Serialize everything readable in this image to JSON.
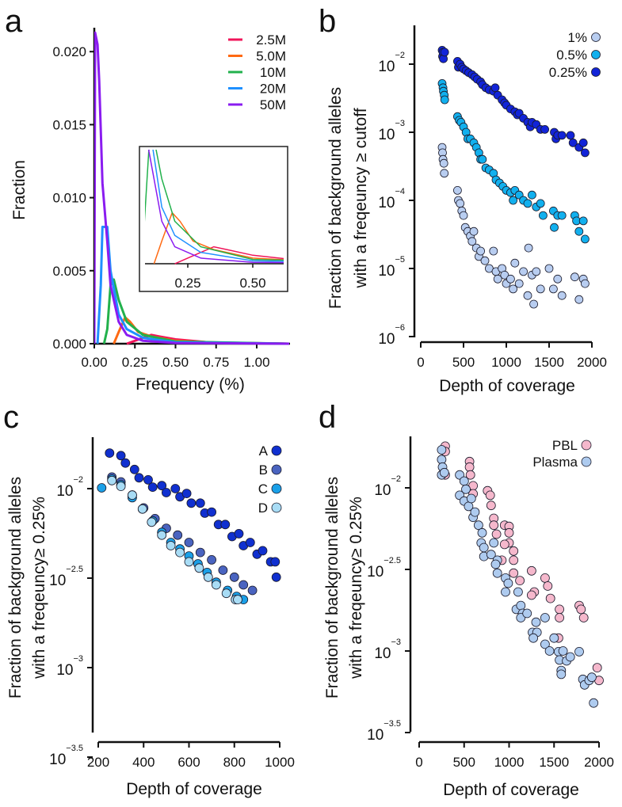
{
  "chart_data": [
    {
      "panel": "a",
      "type": "line",
      "xlabel": "Frequency (%)",
      "ylabel": "Fraction",
      "xlim": [
        0,
        1.2
      ],
      "ylim": [
        0,
        0.0215
      ],
      "xticks": [
        "0.00",
        "0.25",
        "0.50",
        "0.75",
        "1.00"
      ],
      "xtick_values": [
        0,
        0.25,
        0.5,
        0.75,
        1.0
      ],
      "yticks": [
        "0.000",
        "0.005",
        "0.010",
        "0.015",
        "0.020"
      ],
      "ytick_values": [
        0,
        0.005,
        0.01,
        0.015,
        0.02
      ],
      "legend_position": "top-right",
      "series": [
        {
          "name": "2.5M",
          "color": "#f0145a",
          "x": [
            0.2,
            0.3,
            0.35,
            0.4,
            0.5,
            0.7,
            1.0,
            1.2
          ],
          "y": [
            0,
            0.0004,
            0.0006,
            0.0005,
            0.0003,
            0.0001,
            3e-05,
            0
          ]
        },
        {
          "name": "5.0M",
          "color": "#ff6a13",
          "x": [
            0.12,
            0.15,
            0.19,
            0.22,
            0.27,
            0.35,
            0.5,
            0.8,
            1.2
          ],
          "y": [
            0,
            0.0008,
            0.0018,
            0.0015,
            0.0008,
            0.0005,
            0.0002,
            5e-05,
            0
          ]
        },
        {
          "name": "10M",
          "color": "#22b14c",
          "x": [
            0.06,
            0.08,
            0.1,
            0.12,
            0.15,
            0.2,
            0.3,
            0.5,
            1.2
          ],
          "y": [
            0,
            0.001,
            0.004,
            0.0044,
            0.003,
            0.0015,
            0.0006,
            0.00015,
            0
          ]
        },
        {
          "name": "20M",
          "color": "#1e90ff",
          "x": [
            0.02,
            0.04,
            0.05,
            0.08,
            0.1,
            0.15,
            0.2,
            0.3,
            0.5,
            1.2
          ],
          "y": [
            0,
            0.004,
            0.008,
            0.008,
            0.005,
            0.002,
            0.001,
            0.0004,
            0.0001,
            0
          ]
        },
        {
          "name": "50M",
          "color": "#8a1cf0",
          "x": [
            0,
            0.005,
            0.02,
            0.03,
            0.05,
            0.08,
            0.1,
            0.15,
            0.2,
            0.3,
            0.5,
            1.2
          ],
          "y": [
            0,
            0.0213,
            0.0205,
            0.018,
            0.011,
            0.007,
            0.004,
            0.0015,
            0.0006,
            0.0002,
            5e-05,
            0
          ]
        }
      ],
      "inset": {
        "xlim": [
          0.085,
          0.62
        ],
        "ylim": [
          0,
          0.004
        ],
        "xticks": [
          "0.25",
          "0.50"
        ],
        "xtick_values": [
          0.25,
          0.5
        ]
      }
    },
    {
      "panel": "b",
      "type": "scatter",
      "xlabel": "Depth of coverage",
      "ylabel": [
        "Fraction of background alleles",
        "with a freqeuncy ≥ cutoff"
      ],
      "xlim": [
        0,
        2000
      ],
      "ylim_log10": [
        -6,
        -1.45
      ],
      "yscale": "log",
      "xticks": [
        "0",
        "500",
        "1000",
        "1500",
        "2000"
      ],
      "xtick_values": [
        0,
        500,
        1000,
        1500,
        2000
      ],
      "yticks": [
        {
          "base": "10",
          "exp": "−2"
        },
        {
          "base": "10",
          "exp": "−3"
        },
        {
          "base": "10",
          "exp": "−4"
        },
        {
          "base": "10",
          "exp": "−5"
        },
        {
          "base": "10",
          "exp": "−6"
        }
      ],
      "ytick_values_log10": [
        -2,
        -3,
        -4,
        -5,
        -6
      ],
      "legend_position": "top-right",
      "series": [
        {
          "name": "1%",
          "color": "#b8cdf0",
          "x": [
            250,
            255,
            260,
            270,
            275,
            430,
            440,
            460,
            480,
            500,
            520,
            550,
            580,
            600,
            620,
            650,
            680,
            700,
            750,
            800,
            850,
            880,
            900,
            950,
            980,
            1000,
            1050,
            1080,
            1100,
            1150,
            1200,
            1250,
            1260,
            1300,
            1320,
            1350,
            1400,
            1500,
            1550,
            1600,
            1650,
            1800,
            1850,
            1900,
            1920
          ],
          "y": [
            0.0006,
            0.0005,
            0.0004,
            0.00035,
            0.00025,
            0.00014,
            0.0001,
            9e-05,
            7e-05,
            6e-05,
            4e-05,
            3.5e-05,
            3e-05,
            2.5e-05,
            3.5e-05,
            2e-05,
            1.5e-05,
            1.8e-05,
            1.3e-05,
            1e-05,
            1.8e-05,
            9e-06,
            7e-06,
            1e-05,
            8e-06,
            6e-06,
            7e-06,
            5e-06,
            1.2e-05,
            6e-06,
            9e-06,
            4e-06,
            2e-05,
            8e-06,
            3e-06,
            9e-06,
            5e-06,
            1e-05,
            5e-06,
            7e-06,
            4e-06,
            7.5e-06,
            3.5e-06,
            7e-06,
            6e-06
          ]
        },
        {
          "name": "0.5%",
          "color": "#12b0ee",
          "x": [
            250,
            260,
            265,
            275,
            280,
            430,
            450,
            470,
            500,
            530,
            550,
            580,
            620,
            650,
            680,
            700,
            720,
            760,
            800,
            850,
            880,
            920,
            960,
            1000,
            1050,
            1080,
            1100,
            1150,
            1200,
            1250,
            1300,
            1350,
            1400,
            1430,
            1550,
            1560,
            1600,
            1650,
            1800,
            1820,
            1850,
            1900,
            1920
          ],
          "y": [
            0.0052,
            0.0045,
            0.004,
            0.0035,
            0.003,
            0.0017,
            0.0015,
            0.0014,
            0.0012,
            0.001,
            0.0008,
            0.0008,
            0.0007,
            0.0006,
            0.0005,
            0.0004,
            0.0004,
            0.0003,
            0.00028,
            0.00025,
            0.0002,
            0.00018,
            0.00016,
            0.00014,
            0.00013,
            0.0001,
            0.00014,
            0.00012,
            0.0001,
            9e-05,
            0.00012,
            8e-05,
            9e-05,
            6e-05,
            7e-05,
            4e-05,
            6e-05,
            6e-05,
            6e-05,
            5e-05,
            3.5e-05,
            5e-05,
            2.7e-05
          ]
        },
        {
          "name": "0.25%",
          "color": "#1224d8",
          "x": [
            250,
            255,
            260,
            265,
            280,
            430,
            440,
            460,
            480,
            500,
            530,
            560,
            600,
            630,
            660,
            700,
            720,
            760,
            800,
            850,
            870,
            900,
            950,
            980,
            1000,
            1050,
            1100,
            1130,
            1150,
            1200,
            1250,
            1280,
            1300,
            1350,
            1400,
            1450,
            1560,
            1580,
            1600,
            1650,
            1750,
            1780,
            1850,
            1900,
            1920
          ],
          "y": [
            0.016,
            0.013,
            0.015,
            0.012,
            0.015,
            0.011,
            0.009,
            0.01,
            0.009,
            0.0085,
            0.008,
            0.0075,
            0.007,
            0.0065,
            0.006,
            0.0055,
            0.005,
            0.0045,
            0.0042,
            0.004,
            0.0045,
            0.0035,
            0.003,
            0.0027,
            0.0025,
            0.0022,
            0.002,
            0.0018,
            0.0019,
            0.0016,
            0.0014,
            0.0012,
            0.0014,
            0.0013,
            0.0011,
            0.0011,
            0.001,
            0.0008,
            0.0009,
            0.0009,
            0.0009,
            0.0007,
            0.0006,
            0.0007,
            0.0005
          ]
        }
      ]
    },
    {
      "panel": "c",
      "type": "scatter",
      "xlabel": "Depth of coverage",
      "ylabel": [
        "Fraction of background alleles",
        "with a freqeuncy≥ 0.25%"
      ],
      "xlim": [
        200,
        1000
      ],
      "ylim_log10": [
        -3.5,
        -1.72
      ],
      "yscale": "log",
      "xticks": [
        "200",
        "400",
        "600",
        "800",
        "1000"
      ],
      "xtick_values": [
        200,
        400,
        600,
        800,
        1000
      ],
      "yticks": [
        {
          "base": "10",
          "exp": "−2"
        },
        {
          "base": "10",
          "exp": "−2.5"
        },
        {
          "base": "10",
          "exp": "−3"
        },
        {
          "base": "10",
          "exp": "−3.5"
        }
      ],
      "ytick_values_log10": [
        -2,
        -2.5,
        -3,
        -3.5
      ],
      "legend_position": "top-right",
      "series": [
        {
          "name": "A",
          "color": "#1030d0",
          "x": [
            250,
            300,
            320,
            360,
            380,
            420,
            440,
            480,
            500,
            540,
            560,
            590,
            610,
            650,
            670,
            700,
            730,
            760,
            790,
            820,
            840,
            870,
            900,
            925,
            960,
            980,
            985
          ],
          "y": [
            0.0158,
            0.0153,
            0.0139,
            0.0128,
            0.0115,
            0.0112,
            0.0102,
            0.0104,
            0.0095,
            0.01,
            0.009,
            0.0094,
            0.0083,
            0.0083,
            0.0073,
            0.0074,
            0.0063,
            0.0063,
            0.0054,
            0.0056,
            0.0048,
            0.005,
            0.0043,
            0.0045,
            0.0039,
            0.0039,
            0.0032
          ]
        },
        {
          "name": "B",
          "color": "#4a64c0",
          "x": [
            260,
            300,
            350,
            400,
            450,
            500,
            550,
            600,
            650,
            700,
            750,
            800,
            840,
            880
          ],
          "y": [
            0.0116,
            0.0109,
            0.0092,
            0.0078,
            0.0068,
            0.006,
            0.0055,
            0.005,
            0.0044,
            0.004,
            0.0035,
            0.0032,
            0.0029,
            0.0027
          ]
        },
        {
          "name": "C",
          "color": "#1aa0e8",
          "x": [
            215,
            260,
            300,
            350,
            395,
            440,
            480,
            520,
            560,
            600,
            640,
            680,
            720,
            770,
            810,
            840
          ],
          "y": [
            0.0101,
            0.0113,
            0.0105,
            0.0089,
            0.0077,
            0.0066,
            0.0057,
            0.005,
            0.0046,
            0.0042,
            0.0038,
            0.0034,
            0.003,
            0.0027,
            0.0025,
            0.0024
          ]
        },
        {
          "name": "D",
          "color": "#a8dcf5",
          "x": [
            260,
            300,
            350,
            395,
            435,
            480,
            520,
            560,
            600,
            645,
            685,
            720,
            765,
            805,
            815
          ],
          "y": [
            0.0111,
            0.0103,
            0.0092,
            0.0077,
            0.0065,
            0.0055,
            0.0048,
            0.0044,
            0.0039,
            0.0036,
            0.0032,
            0.0029,
            0.0026,
            0.0024,
            0.0024
          ]
        }
      ]
    },
    {
      "panel": "d",
      "type": "scatter",
      "xlabel": "Depth of coverage",
      "ylabel": [
        "Fraction of background alleles",
        "with a freqeuncy≥ 0.25%"
      ],
      "xlim": [
        0,
        2000
      ],
      "ylim_log10": [
        -3.5,
        -1.68
      ],
      "yscale": "log",
      "xticks": [
        "0",
        "500",
        "1000",
        "1500",
        "2000"
      ],
      "xtick_values": [
        0,
        500,
        1000,
        1500,
        2000
      ],
      "yticks": [
        {
          "base": "10",
          "exp": "−2"
        },
        {
          "base": "10",
          "exp": "−2.5"
        },
        {
          "base": "10",
          "exp": "−3"
        },
        {
          "base": "10",
          "exp": "−3.5"
        }
      ],
      "ytick_values_log10": [
        -2,
        -2.5,
        -3,
        -3.5
      ],
      "legend_position": "top-right",
      "series": [
        {
          "name": "PBL",
          "color": "#f5b8cc",
          "x": [
            290,
            290,
            290,
            560,
            560,
            570,
            600,
            600,
            760,
            790,
            800,
            830,
            830,
            860,
            950,
            1000,
            1000,
            1000,
            950,
            1050,
            1050,
            1050,
            920,
            1120,
            1250,
            1280,
            1250,
            1400,
            1430,
            1460,
            1560,
            1560,
            1550,
            1780,
            1800,
            1830,
            1980,
            2000
          ],
          "y": [
            0.018,
            0.0167,
            0.012,
            0.0145,
            0.0134,
            0.012,
            0.0103,
            0.0092,
            0.0096,
            0.009,
            0.0078,
            0.0065,
            0.0059,
            0.0052,
            0.0059,
            0.0058,
            0.0053,
            0.0046,
            0.0045,
            0.0041,
            0.0036,
            0.003,
            0.0036,
            0.0027,
            0.0031,
            0.0023,
            0.0022,
            0.0028,
            0.0025,
            0.0021,
            0.0018,
            0.0016,
            0.0012,
            0.0019,
            0.0018,
            0.0016,
            0.00079,
            0.00066
          ]
        },
        {
          "name": "Plasma",
          "color": "#aecbef",
          "x": [
            250,
            250,
            260,
            250,
            280,
            450,
            450,
            500,
            520,
            500,
            550,
            580,
            600,
            620,
            660,
            700,
            690,
            720,
            720,
            830,
            800,
            870,
            850,
            870,
            960,
            960,
            990,
            1100,
            1080,
            1130,
            1150,
            1130,
            1200,
            1260,
            1300,
            1310,
            1270,
            1400,
            1400,
            1450,
            1500,
            1550,
            1560,
            1600,
            1640,
            1680,
            1780,
            1580,
            1580,
            1820,
            1840,
            1890,
            1920,
            1940
          ],
          "y": [
            0.0171,
            0.0149,
            0.0134,
            0.012,
            0.0124,
            0.012,
            0.009,
            0.011,
            0.0098,
            0.0083,
            0.0077,
            0.0086,
            0.0066,
            0.0071,
            0.0059,
            0.0053,
            0.0046,
            0.0043,
            0.0038,
            0.0046,
            0.0039,
            0.0036,
            0.0034,
            0.003,
            0.0028,
            0.0023,
            0.0026,
            0.0023,
            0.0018,
            0.0019,
            0.0017,
            0.0016,
            0.0017,
            0.0013,
            0.0015,
            0.0013,
            0.0012,
            0.0016,
            0.0011,
            0.001,
            0.0012,
            0.00099,
            0.00088,
            0.001,
            0.00087,
            0.00092,
            0.00099,
            0.00076,
            0.00072,
            0.00067,
            0.00062,
            0.00066,
            0.00069,
            0.00048
          ]
        }
      ]
    }
  ]
}
